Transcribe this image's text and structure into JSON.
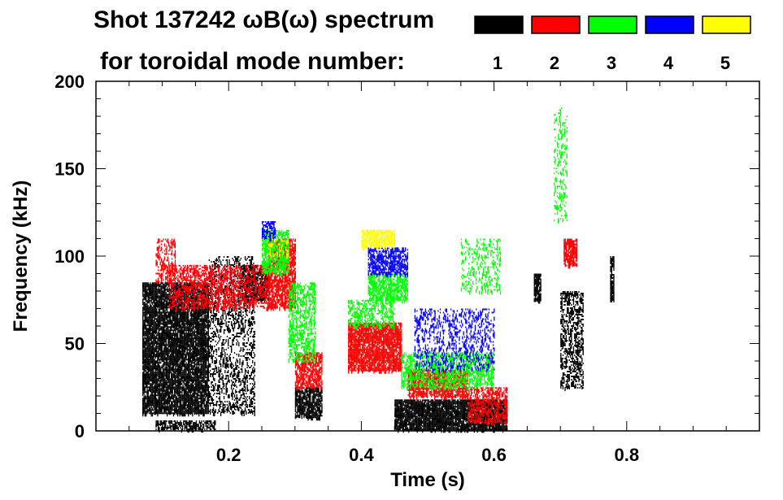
{
  "chart_data": {
    "type": "heatmap",
    "title_line1": "Shot 137242 ωB(ω) spectrum",
    "title_line2": "for toroidal mode number:",
    "xlabel": "Time (s)",
    "ylabel": "Frequency (kHz)",
    "xlim": [
      0.0,
      1.0
    ],
    "ylim": [
      0,
      200
    ],
    "x_ticks": [
      {
        "value": 0.2,
        "label": "0.2"
      },
      {
        "value": 0.4,
        "label": "0.4"
      },
      {
        "value": 0.6,
        "label": "0.6"
      },
      {
        "value": 0.8,
        "label": "0.8"
      }
    ],
    "y_ticks": [
      {
        "value": 0,
        "label": "0"
      },
      {
        "value": 50,
        "label": "50"
      },
      {
        "value": 100,
        "label": "100"
      },
      {
        "value": 150,
        "label": "150"
      },
      {
        "value": 200,
        "label": "200"
      }
    ],
    "legend": [
      {
        "mode": "1",
        "color": "#000000"
      },
      {
        "mode": "2",
        "color": "#ff0000"
      },
      {
        "mode": "3",
        "color": "#00ff00"
      },
      {
        "mode": "4",
        "color": "#0000ff"
      },
      {
        "mode": "5",
        "color": "#ffff00"
      }
    ],
    "regions": [
      {
        "mode": 1,
        "t": [
          0.07,
          0.17
        ],
        "f": [
          10,
          85
        ],
        "density": 0.85
      },
      {
        "mode": 1,
        "t": [
          0.17,
          0.24
        ],
        "f": [
          10,
          100
        ],
        "density": 0.3
      },
      {
        "mode": 1,
        "t": [
          0.22,
          0.26
        ],
        "f": [
          75,
          95
        ],
        "density": 0.7
      },
      {
        "mode": 1,
        "t": [
          0.09,
          0.18
        ],
        "f": [
          1,
          6
        ],
        "density": 0.6
      },
      {
        "mode": 1,
        "t": [
          0.3,
          0.34
        ],
        "f": [
          8,
          25
        ],
        "density": 0.8
      },
      {
        "mode": 1,
        "t": [
          0.45,
          0.62
        ],
        "f": [
          1,
          18
        ],
        "density": 0.9
      },
      {
        "mode": 1,
        "t": [
          0.66,
          0.67
        ],
        "f": [
          75,
          90
        ],
        "density": 0.9
      },
      {
        "mode": 1,
        "t": [
          0.7,
          0.735
        ],
        "f": [
          25,
          80
        ],
        "density": 0.45
      },
      {
        "mode": 1,
        "t": [
          0.775,
          0.78
        ],
        "f": [
          75,
          100
        ],
        "density": 0.8
      },
      {
        "mode": 2,
        "t": [
          0.09,
          0.12
        ],
        "f": [
          85,
          110
        ],
        "density": 0.35
      },
      {
        "mode": 2,
        "t": [
          0.11,
          0.26
        ],
        "f": [
          70,
          95
        ],
        "density": 0.45
      },
      {
        "mode": 2,
        "t": [
          0.26,
          0.3
        ],
        "f": [
          70,
          110
        ],
        "density": 0.7
      },
      {
        "mode": 2,
        "t": [
          0.3,
          0.34
        ],
        "f": [
          25,
          45
        ],
        "density": 0.7
      },
      {
        "mode": 2,
        "t": [
          0.38,
          0.46
        ],
        "f": [
          35,
          62
        ],
        "density": 0.85
      },
      {
        "mode": 2,
        "t": [
          0.47,
          0.56
        ],
        "f": [
          20,
          35
        ],
        "density": 0.7
      },
      {
        "mode": 2,
        "t": [
          0.56,
          0.62
        ],
        "f": [
          5,
          25
        ],
        "density": 0.5
      },
      {
        "mode": 2,
        "t": [
          0.705,
          0.725
        ],
        "f": [
          95,
          110
        ],
        "density": 0.8
      },
      {
        "mode": 3,
        "t": [
          0.25,
          0.29
        ],
        "f": [
          90,
          115
        ],
        "density": 0.7
      },
      {
        "mode": 3,
        "t": [
          0.29,
          0.33
        ],
        "f": [
          40,
          85
        ],
        "density": 0.45
      },
      {
        "mode": 3,
        "t": [
          0.41,
          0.47
        ],
        "f": [
          75,
          90
        ],
        "density": 0.65
      },
      {
        "mode": 3,
        "t": [
          0.38,
          0.45
        ],
        "f": [
          60,
          75
        ],
        "density": 0.4
      },
      {
        "mode": 3,
        "t": [
          0.46,
          0.6
        ],
        "f": [
          25,
          45
        ],
        "density": 0.5
      },
      {
        "mode": 3,
        "t": [
          0.55,
          0.61
        ],
        "f": [
          80,
          110
        ],
        "density": 0.2
      },
      {
        "mode": 3,
        "t": [
          0.69,
          0.71
        ],
        "f": [
          120,
          185
        ],
        "density": 0.2
      },
      {
        "mode": 4,
        "t": [
          0.41,
          0.47
        ],
        "f": [
          90,
          105
        ],
        "density": 0.65
      },
      {
        "mode": 4,
        "t": [
          0.48,
          0.6
        ],
        "f": [
          35,
          70
        ],
        "density": 0.25
      },
      {
        "mode": 4,
        "t": [
          0.25,
          0.27
        ],
        "f": [
          110,
          120
        ],
        "density": 0.6
      },
      {
        "mode": 5,
        "t": [
          0.4,
          0.45
        ],
        "f": [
          105,
          115
        ],
        "density": 0.75
      },
      {
        "mode": 5,
        "t": [
          0.26,
          0.29
        ],
        "f": [
          100,
          110
        ],
        "density": 0.25
      }
    ]
  }
}
